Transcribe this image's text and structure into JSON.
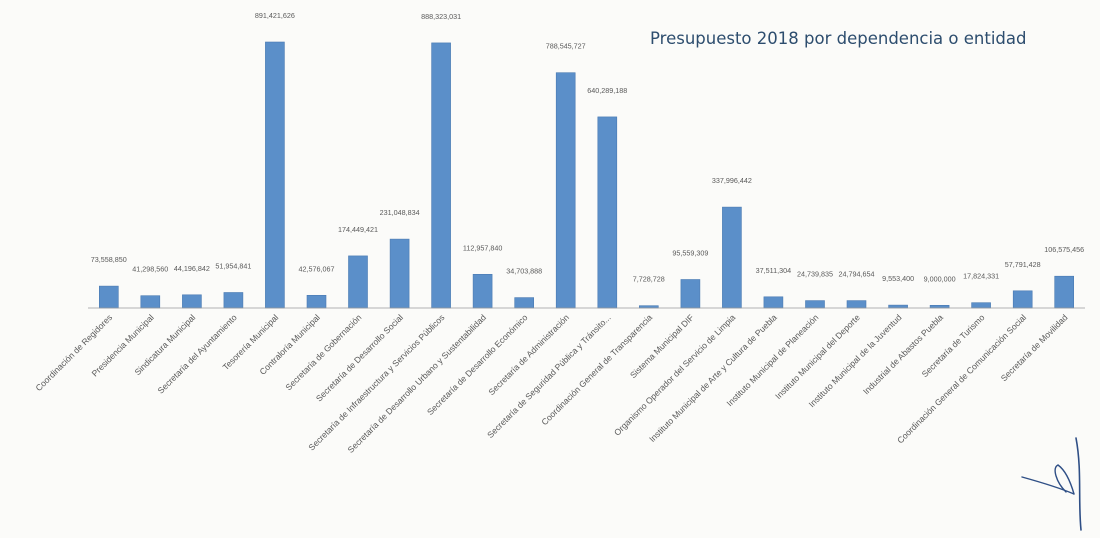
{
  "chart_data": {
    "type": "bar",
    "title": "Presupuesto 2018 por dependencia o entidad",
    "xlabel": "",
    "ylabel": "",
    "ylim": [
      0,
      900000000
    ],
    "grid": false,
    "legend": "none",
    "bar_color": "#5b8fc9",
    "title_color": "#2d4d6e",
    "categories": [
      "Coordinación de Regidores",
      "Presidencia Municipal",
      "Sindicatura Municipal",
      "Secretaría del Ayuntamiento",
      "Tesorería Municipal",
      "Contraloría Municipal",
      "Secretaría de Gobernación",
      "Secretaría de Desarrollo Social",
      "Secretaría de Infraestructura y Servicios Públicos",
      "Secretaría de Desarrollo Urbano y Sustentabilidad",
      "Secretaría de Desarrollo Económico",
      "Secretaría de Administración",
      "Secretaría de Seguridad Pública y Tránsito...",
      "Coordinación General de Transparencia",
      "Sistema Municipal DIF",
      "Organismo Operador del Servicio de Limpia",
      "Instituto Municipal de Arte y Cultura de Puebla",
      "Instituto Municipal de Planeación",
      "Instituto Municipal del Deporte",
      "Instituto Municipal de la Juventud",
      "Industrial de Abastos Puebla",
      "Secretaría de Turismo",
      "Coordinación General de Comunicación Social",
      "Secretaría de Movilidad"
    ],
    "values": [
      73558850,
      41298560,
      44196842,
      51954841,
      891421626,
      42576067,
      174449421,
      231048834,
      888323031,
      112957840,
      34703888,
      788545727,
      640289188,
      7728728,
      95559309,
      337996442,
      37511304,
      24739835,
      24794654,
      9553400,
      9000000,
      17824331,
      57791428,
      106575456
    ],
    "value_labels": [
      "73,558,850",
      "41,298,560",
      "44,196,842",
      "51,954,841",
      "891,421,626",
      "42,576,067",
      "174,449,421",
      "231,048,834",
      "888,323,031",
      "112,957,840",
      "34,703,888",
      "788,545,727",
      "640,289,188",
      "7,728,728",
      "95,559,309",
      "337,996,442",
      "37,511,304",
      "24,739,835",
      "24,794,654",
      "9,553,400",
      "9,000,000",
      "17,824,331",
      "57,791,428",
      "106,575,456"
    ]
  }
}
